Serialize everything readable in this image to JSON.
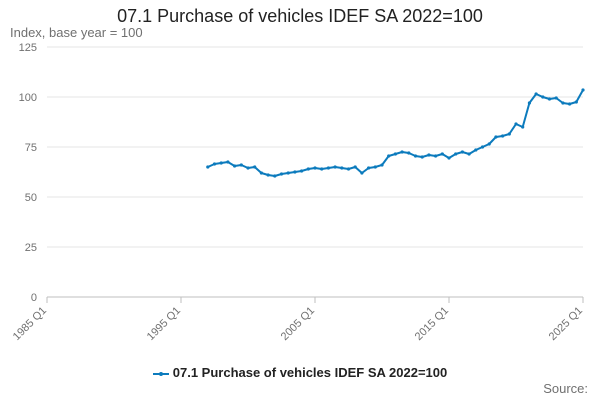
{
  "chart_data": {
    "type": "line",
    "title": "07.1 Purchase of vehicles IDEF SA 2022=100",
    "ylabel": "Index, base year = 100",
    "xlabel": "",
    "x_range": [
      1985,
      2025
    ],
    "ylim": [
      0,
      125
    ],
    "y_ticks": [
      0,
      25,
      50,
      75,
      100,
      125
    ],
    "x_ticks": [
      {
        "label": "1985 Q1",
        "value": 1985
      },
      {
        "label": "1995 Q1",
        "value": 1995
      },
      {
        "label": "2005 Q1",
        "value": 2005
      },
      {
        "label": "2015 Q1",
        "value": 2015
      },
      {
        "label": "2025 Q1",
        "value": 2025
      }
    ],
    "grid": true,
    "legend_position": "bottom",
    "series": [
      {
        "name": "07.1 Purchase of vehicles IDEF SA 2022=100",
        "color": "#0c7bbd",
        "x": [
          1997.0,
          1997.5,
          1998.0,
          1998.5,
          1999.0,
          1999.5,
          2000.0,
          2000.5,
          2001.0,
          2001.5,
          2002.0,
          2002.5,
          2003.0,
          2003.5,
          2004.0,
          2004.5,
          2005.0,
          2005.5,
          2006.0,
          2006.5,
          2007.0,
          2007.5,
          2008.0,
          2008.5,
          2009.0,
          2009.5,
          2010.0,
          2010.5,
          2011.0,
          2011.5,
          2012.0,
          2012.5,
          2013.0,
          2013.5,
          2014.0,
          2014.5,
          2015.0,
          2015.5,
          2016.0,
          2016.5,
          2017.0,
          2017.5,
          2018.0,
          2018.5,
          2019.0,
          2019.5,
          2020.0,
          2020.5,
          2021.0,
          2021.5,
          2022.0,
          2022.5,
          2023.0,
          2023.5,
          2024.0,
          2024.5,
          2025.0
        ],
        "values": [
          65,
          66.5,
          67,
          67.5,
          65.5,
          66,
          64.5,
          65,
          62,
          61,
          60.5,
          61.5,
          62,
          62.5,
          63,
          64,
          64.5,
          64,
          64.5,
          65,
          64.5,
          64,
          65,
          62,
          64.5,
          65,
          66,
          70.5,
          71.5,
          72.5,
          72,
          70.5,
          70,
          71,
          70.5,
          71.5,
          69.5,
          71.5,
          72.5,
          71.5,
          73.5,
          75,
          76.5,
          80,
          80.5,
          81.5,
          86.5,
          85,
          97,
          101.5,
          100,
          99,
          99.5,
          97,
          96.5,
          97.5,
          103.5
        ]
      }
    ]
  },
  "legend": {
    "label": "07.1 Purchase of vehicles IDEF SA 2022=100"
  },
  "source": {
    "text": "Source:"
  }
}
